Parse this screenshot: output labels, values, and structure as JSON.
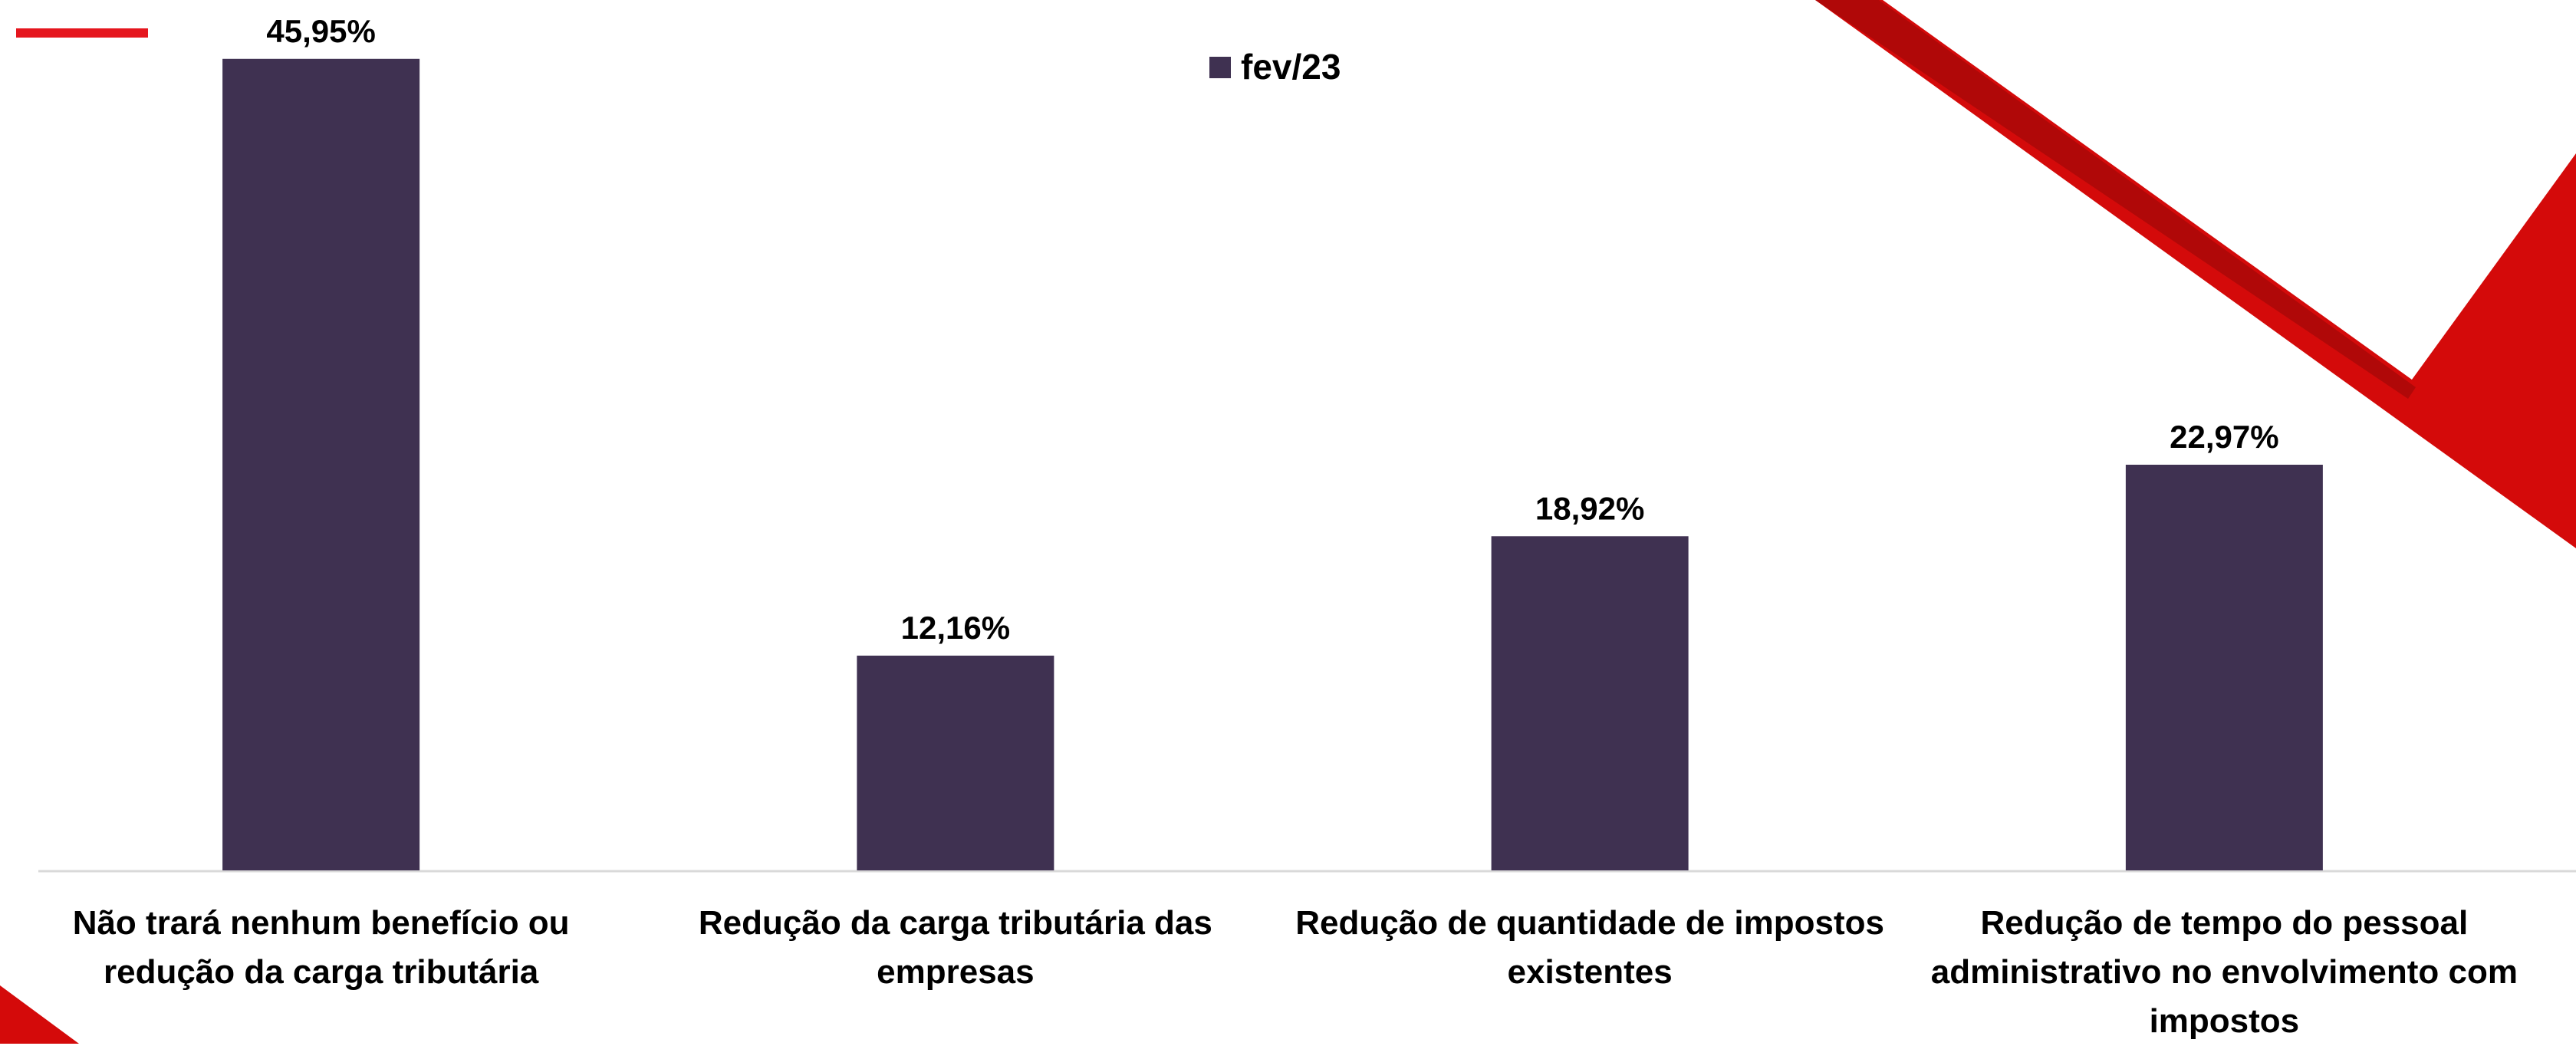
{
  "chart_data": {
    "type": "bar",
    "categories": [
      "Não trará nenhum benefício ou redução da carga tributária",
      "Redução da carga tributária das empresas",
      "Redução de quantidade de impostos existentes",
      "Redução de tempo do pessoal administrativo no envolvimento com impostos"
    ],
    "series": [
      {
        "name": "fev/23",
        "color": "#3f3151",
        "values": [
          45.95,
          12.16,
          18.92,
          22.97
        ],
        "value_labels": [
          "45,95%",
          "12,16%",
          "18,92%",
          "22,97%"
        ]
      }
    ],
    "legend": "top"
  }
}
